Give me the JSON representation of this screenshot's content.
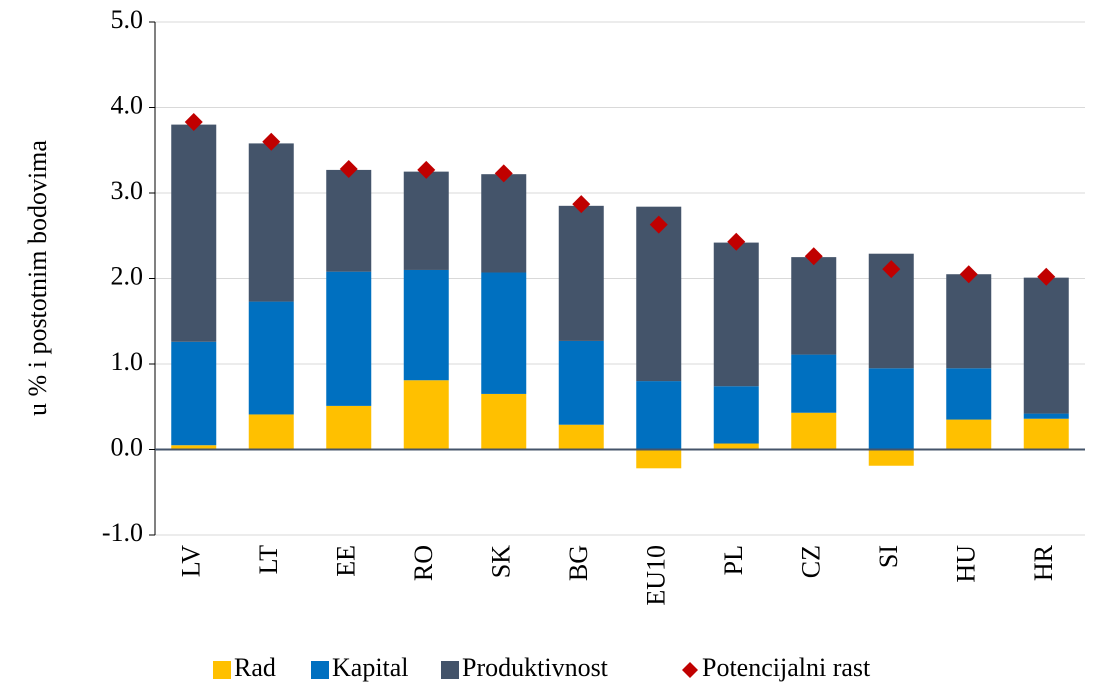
{
  "chart_data": {
    "type": "bar",
    "stacked": true,
    "y_axis_label": "u % i postotnim bodovima",
    "categories": [
      "LV",
      "LT",
      "EE",
      "RO",
      "SK",
      "BG",
      "EU10",
      "PL",
      "CZ",
      "SI",
      "HU",
      "HR"
    ],
    "series": [
      {
        "name": "Rad",
        "color": "#ffc000",
        "values": [
          0.05,
          0.41,
          0.51,
          0.81,
          0.65,
          0.29,
          -0.22,
          0.07,
          0.43,
          -0.19,
          0.35,
          0.36
        ]
      },
      {
        "name": "Kapital",
        "color": "#0070c0",
        "values": [
          1.21,
          1.32,
          1.57,
          1.29,
          1.42,
          0.98,
          0.8,
          0.67,
          0.68,
          0.95,
          0.6,
          0.06
        ]
      },
      {
        "name": "Produktivnost",
        "color": "#44546a",
        "values": [
          2.54,
          1.85,
          1.19,
          1.15,
          1.15,
          1.58,
          2.04,
          1.68,
          1.14,
          1.34,
          1.1,
          1.59
        ]
      },
      {
        "name": "Potencijalni rast",
        "color": "#c00000",
        "type": "marker",
        "values": [
          3.83,
          3.6,
          3.28,
          3.27,
          3.23,
          2.87,
          2.63,
          2.43,
          2.26,
          2.11,
          2.05,
          2.02
        ]
      }
    ],
    "ylim": [
      -1,
      5
    ],
    "yticks": [
      {
        "value": -1,
        "label": "-1.0"
      },
      {
        "value": 0,
        "label": "0.0"
      },
      {
        "value": 1,
        "label": "1.0"
      },
      {
        "value": 2,
        "label": "2.0"
      },
      {
        "value": 3,
        "label": "3.0"
      },
      {
        "value": 4,
        "label": "4.0"
      },
      {
        "value": 5,
        "label": "5.0"
      }
    ],
    "grid": true,
    "legend": "bottom"
  }
}
